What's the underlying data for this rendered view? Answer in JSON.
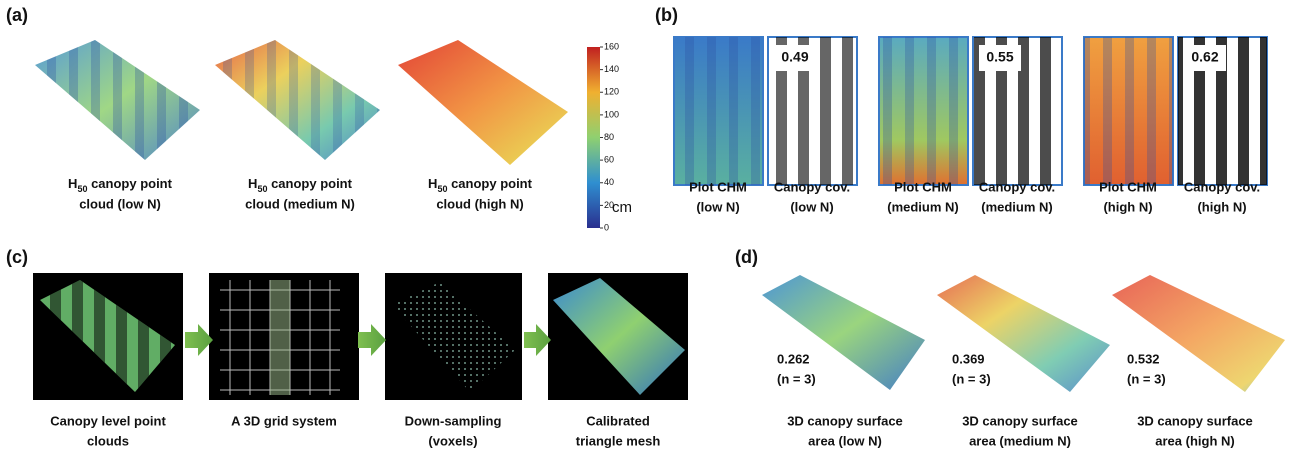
{
  "panel_a": {
    "label": "(a)",
    "items": [
      {
        "h": "H",
        "sub": "50",
        "rest": " canopy point",
        "line2": "cloud (low N)"
      },
      {
        "h": "H",
        "sub": "50",
        "rest": " canopy point",
        "line2": "cloud (medium N)"
      },
      {
        "h": "H",
        "sub": "50",
        "rest": " canopy point",
        "line2": "cloud (high N)"
      }
    ],
    "colorbar": {
      "ticks": [
        0,
        20,
        40,
        60,
        80,
        100,
        120,
        140,
        160
      ],
      "unit": "cm"
    }
  },
  "panel_b": {
    "label": "(b)",
    "groups": [
      {
        "chm": [
          "Plot CHM",
          "(low N)"
        ],
        "cov": [
          "Canopy cov.",
          "(low N)"
        ],
        "value": 0.49
      },
      {
        "chm": [
          "Plot CHM",
          "(medium N)"
        ],
        "cov": [
          "Canopy cov.",
          "(medium N)"
        ],
        "value": 0.55
      },
      {
        "chm": [
          "Plot CHM",
          "(high N)"
        ],
        "cov": [
          "Canopy cov.",
          "(high N)"
        ],
        "value": 0.62
      }
    ]
  },
  "panel_c": {
    "label": "(c)",
    "steps": [
      [
        "Canopy level point",
        "clouds"
      ],
      [
        "A 3D grid system"
      ],
      [
        "Down-sampling",
        "(voxels)"
      ],
      [
        "Calibrated",
        "triangle mesh"
      ]
    ]
  },
  "panel_d": {
    "label": "(d)",
    "items": [
      {
        "value": 0.262,
        "n": "(n = 3)",
        "caption": [
          "3D canopy surface",
          "area (low N)"
        ]
      },
      {
        "value": 0.369,
        "n": "(n = 3)",
        "caption": [
          "3D canopy surface",
          "area (medium N)"
        ]
      },
      {
        "value": 0.532,
        "n": "(n = 3)",
        "caption": [
          "3D canopy surface",
          "area (high N)"
        ]
      }
    ]
  }
}
